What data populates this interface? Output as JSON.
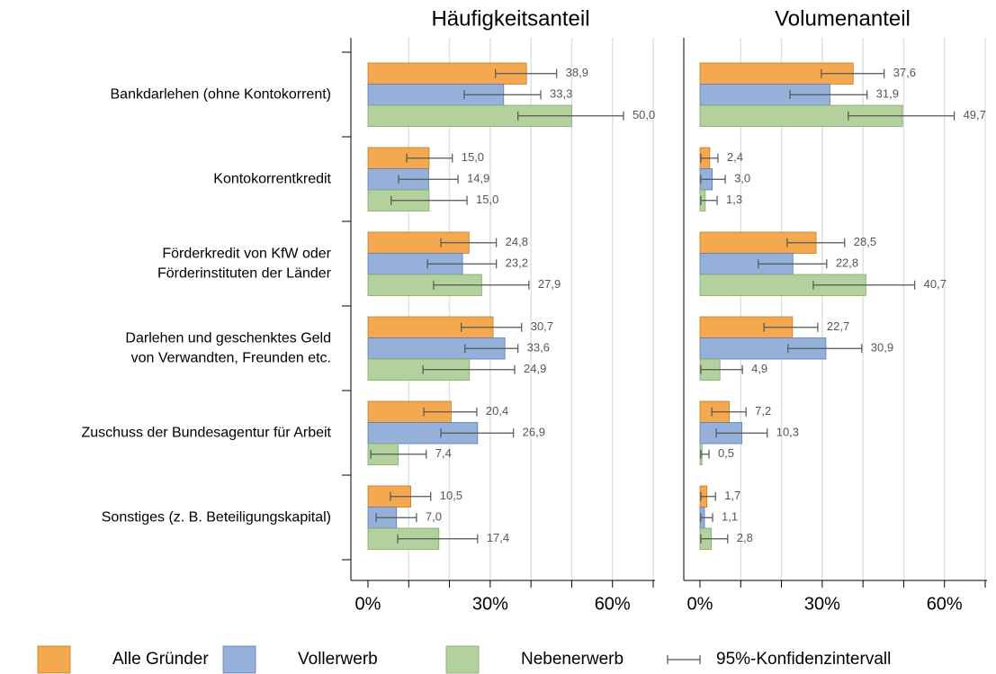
{
  "chart_data": [
    {
      "type": "bar",
      "orientation": "horizontal",
      "title": "Häufigkeitsanteil",
      "categories": [
        "Bankdarlehen (ohne Kontokorrent)",
        "Kontokorrentkredit",
        [
          "Förderkredit von KfW oder",
          "Förderinstituten der Länder"
        ],
        [
          "Darlehen und geschenktes Geld",
          "von Verwandten, Freunden etc."
        ],
        "Zuschuss der Bundesagentur für Arbeit",
        "Sonstiges (z. B. Beteiligungskapital)"
      ],
      "series": [
        {
          "name": "Alle Gründer",
          "color": "#f4a950",
          "values": [
            38.9,
            15.0,
            24.8,
            30.7,
            20.4,
            10.5
          ],
          "value_labels": [
            "38,9",
            "15,0",
            "24,8",
            "30,7",
            "20,4",
            "10,5"
          ],
          "ci": [
            [
              31.3,
              46.3
            ],
            [
              9.5,
              20.7
            ],
            [
              17.9,
              31.5
            ],
            [
              22.9,
              37.7
            ],
            [
              13.7,
              26.7
            ],
            [
              5.5,
              15.4
            ]
          ]
        },
        {
          "name": "Vollerwerb",
          "color": "#95b0d9",
          "values": [
            33.3,
            14.9,
            23.2,
            33.6,
            26.9,
            7.0
          ],
          "value_labels": [
            "33,3",
            "14,9",
            "23,2",
            "33,6",
            "26,9",
            "7,0"
          ],
          "ci": [
            [
              23.6,
              42.4
            ],
            [
              7.5,
              22.1
            ],
            [
              14.6,
              31.5
            ],
            [
              23.8,
              36.8
            ],
            [
              17.9,
              35.7
            ],
            [
              2.0,
              11.9
            ]
          ]
        },
        {
          "name": "Nebenerwerb",
          "color": "#b3d19c",
          "values": [
            50.0,
            15.0,
            27.9,
            24.9,
            7.4,
            17.4
          ],
          "value_labels": [
            "50,0",
            "15,0",
            "27,9",
            "24,9",
            "7,4",
            "17,4"
          ],
          "ci": [
            [
              36.8,
              62.7
            ],
            [
              5.7,
              24.3
            ],
            [
              16.1,
              39.5
            ],
            [
              13.5,
              36.0
            ],
            [
              0.7,
              14.3
            ],
            [
              7.3,
              26.9
            ]
          ]
        }
      ],
      "xlim": [
        0,
        70
      ],
      "xticks": [
        {
          "value": 0,
          "label": "0%"
        },
        {
          "value": 30,
          "label": "30%"
        },
        {
          "value": 60,
          "label": "60%"
        }
      ],
      "minor_xticks": [
        10,
        20,
        40,
        50,
        70
      ],
      "grid": true,
      "ci_label": "95%-Konfidenzintervall"
    },
    {
      "type": "bar",
      "orientation": "horizontal",
      "title": "Volumenanteil",
      "series": [
        {
          "color": "#f4a950",
          "values": [
            37.6,
            2.4,
            28.5,
            22.7,
            7.2,
            1.7
          ],
          "value_labels": [
            "37,6",
            "2,4",
            "28,5",
            "22,7",
            "7,2",
            "1,7"
          ],
          "ci": [
            [
              29.8,
              45.2
            ],
            [
              0.2,
              4.4
            ],
            [
              21.4,
              35.5
            ],
            [
              15.7,
              28.9
            ],
            [
              2.9,
              11.3
            ],
            [
              0.2,
              3.8
            ]
          ]
        },
        {
          "color": "#95b0d9",
          "values": [
            31.9,
            3.0,
            22.8,
            30.9,
            10.3,
            1.1
          ],
          "value_labels": [
            "31,9",
            "3,0",
            "22,8",
            "30,9",
            "10,3",
            "1,1"
          ],
          "ci": [
            [
              22.1,
              41.0
            ],
            [
              0.2,
              6.2
            ],
            [
              14.3,
              31.1
            ],
            [
              21.6,
              39.7
            ],
            [
              4.0,
              16.5
            ],
            [
              0.2,
              3.1
            ]
          ]
        },
        {
          "color": "#b3d19c",
          "values": [
            49.7,
            1.3,
            40.7,
            4.9,
            0.5,
            2.8
          ],
          "value_labels": [
            "49,7",
            "1,3",
            "40,7",
            "4,9",
            "0,5",
            "2,8"
          ],
          "ci": [
            [
              36.4,
              62.4
            ],
            [
              0.2,
              4.2
            ],
            [
              27.8,
              52.7
            ],
            [
              0.2,
              10.4
            ],
            [
              0.2,
              2.2
            ],
            [
              0.2,
              6.8
            ]
          ]
        }
      ],
      "xlim": [
        0,
        70
      ],
      "xticks": [
        {
          "value": 0,
          "label": "0%"
        },
        {
          "value": 30,
          "label": "30%"
        },
        {
          "value": 60,
          "label": "60%"
        }
      ],
      "minor_xticks": [
        10,
        20,
        40,
        50,
        70
      ],
      "grid": true
    }
  ]
}
